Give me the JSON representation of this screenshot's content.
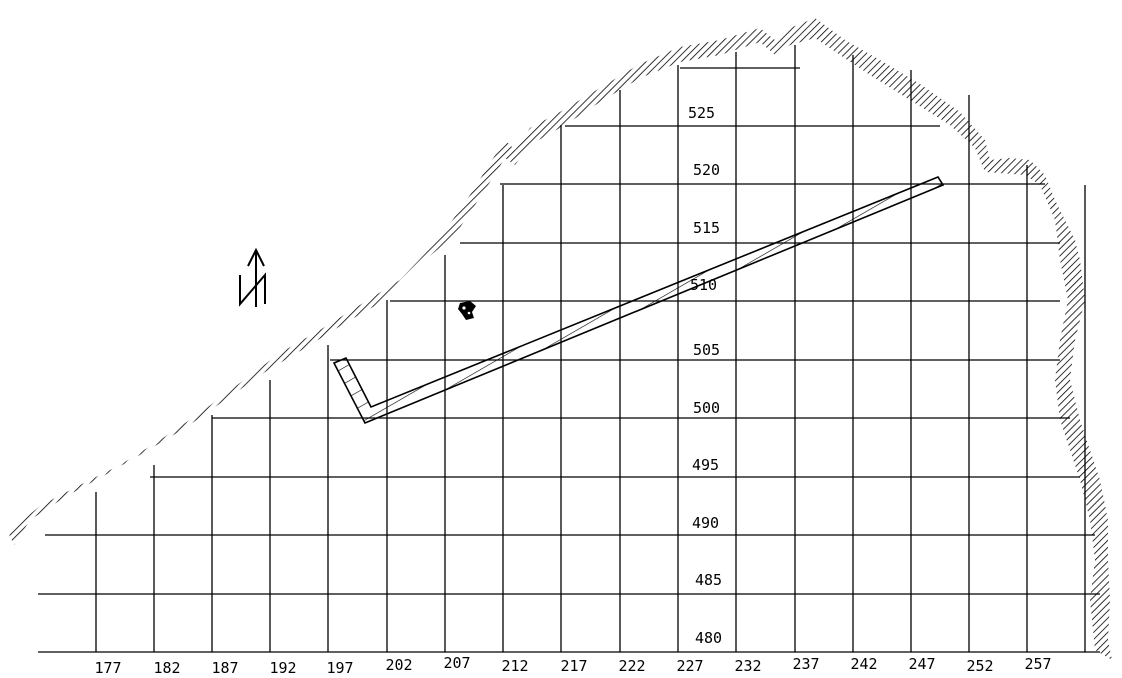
{
  "map": {
    "grid_x_labels": [
      "177",
      "182",
      "187",
      "192",
      "197",
      "202",
      "207",
      "212",
      "217",
      "222",
      "227",
      "232",
      "237",
      "242",
      "247",
      "252",
      "257"
    ],
    "grid_y_labels": [
      "480",
      "485",
      "490",
      "495",
      "500",
      "505",
      "510",
      "515",
      "520",
      "525"
    ],
    "north_arrow_letter": "N",
    "colors": {
      "line": "#000000",
      "background": "#ffffff"
    },
    "icons": [
      "north-arrow-icon",
      "cave-wall-hatching",
      "trench-outline",
      "find-marker-icon"
    ]
  }
}
